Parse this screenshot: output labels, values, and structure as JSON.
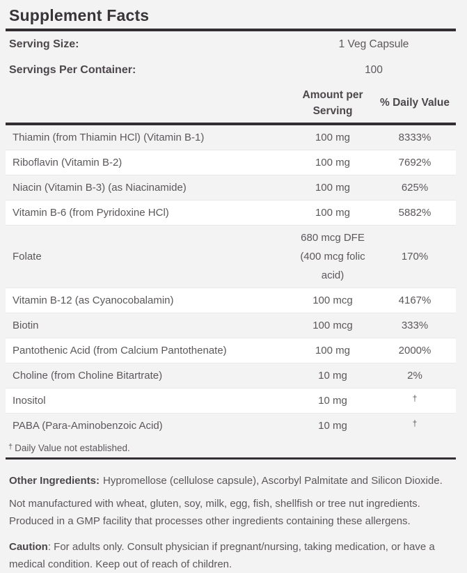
{
  "label": {
    "title": "Supplement Facts",
    "serving": {
      "size_label": "Serving Size:",
      "size_value": "1 Veg Capsule",
      "per_container_label": "Servings Per Container:",
      "per_container_value": "100"
    },
    "columns": {
      "amount_header": "Amount per Serving",
      "dv_header": "% Daily Value"
    },
    "rows": [
      {
        "name": "Thiamin (from Thiamin HCl) (Vitamin B-1)",
        "amount": "100 mg",
        "dv": "8333%"
      },
      {
        "name": "Riboflavin (Vitamin B-2)",
        "amount": "100 mg",
        "dv": "7692%"
      },
      {
        "name": "Niacin (Vitamin B-3) (as Niacinamide)",
        "amount": "100 mg",
        "dv": "625%"
      },
      {
        "name": "Vitamin B-6 (from Pyridoxine HCl)",
        "amount": "100 mg",
        "dv": "5882%"
      },
      {
        "name": "Folate",
        "amount": "680 mcg DFE (400 mcg folic acid)",
        "dv": "170%"
      },
      {
        "name": "Vitamin B-12 (as Cyanocobalamin)",
        "amount": "100 mcg",
        "dv": "4167%"
      },
      {
        "name": "Biotin",
        "amount": "100 mcg",
        "dv": "333%"
      },
      {
        "name": "Pantothenic Acid (from Calcium Pantothenate)",
        "amount": "100 mg",
        "dv": "2000%"
      },
      {
        "name": "Choline (from Choline Bitartrate)",
        "amount": "10 mg",
        "dv": "2%"
      },
      {
        "name": "Inositol",
        "amount": "10 mg",
        "dv": "†"
      },
      {
        "name": "PABA (Para-Aminobenzoic Acid)",
        "amount": "10 mg",
        "dv": "†"
      }
    ],
    "footnote": {
      "symbol": "†",
      "text": "Daily Value not established."
    },
    "other_ingredients": {
      "label": "Other Ingredients:",
      "text": "Hypromellose (cellulose capsule), Ascorbyl Palmitate and Silicon Dioxide."
    },
    "allergen_statement": "Not manufactured with wheat, gluten, soy, milk, egg, fish, shellfish or tree nut ingredients. Produced in a GMP facility that processes other ingredients containing these allergens.",
    "caution": {
      "label": "Caution",
      "text": ": For adults only. Consult physician if pregnant/nursing, taking medication, or have a medical condition. Keep out of reach of children."
    },
    "colors": {
      "background": "#f4f3f3",
      "row_stripe": "#ffffff",
      "rule": "#322e32",
      "heading_text": "#383438",
      "bold_text": "#4b474b",
      "body_text": "#5b575b",
      "row_divider": "#e9e7e7"
    }
  }
}
